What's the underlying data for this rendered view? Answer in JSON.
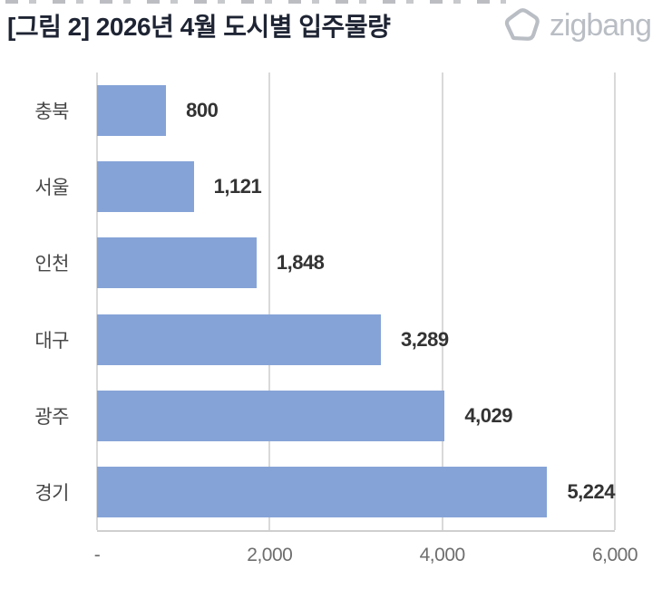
{
  "header": {
    "title": "[그림 2] 2026년 4월 도시별 입주물량",
    "logo_text": "zigbang"
  },
  "chart_data": {
    "type": "bar",
    "orientation": "horizontal",
    "title": "[그림 2] 2026년 4월 도시별 입주물량",
    "categories": [
      "충북",
      "서울",
      "인천",
      "대구",
      "광주",
      "경기"
    ],
    "values": [
      800,
      1121,
      1848,
      3289,
      4029,
      5224
    ],
    "value_labels": [
      "800",
      "1,121",
      "1,848",
      "3,289",
      "4,029",
      "5,224"
    ],
    "x_ticks": [
      {
        "label": "-",
        "value": 0
      },
      {
        "label": "2,000",
        "value": 2000
      },
      {
        "label": "4,000",
        "value": 4000
      },
      {
        "label": "6,000",
        "value": 6000
      }
    ],
    "xlim": [
      0,
      6000
    ],
    "grid": true,
    "legend": false,
    "bar_color": "#85a3d7",
    "colors": {
      "grid_line": "#d9d9d9",
      "axis_line": "#cfcfcf",
      "category_label": "#474747",
      "value_label": "#333333",
      "tick_label": "#6e6e6e",
      "title": "#1e2433",
      "logo": "#b9bdc4"
    }
  }
}
